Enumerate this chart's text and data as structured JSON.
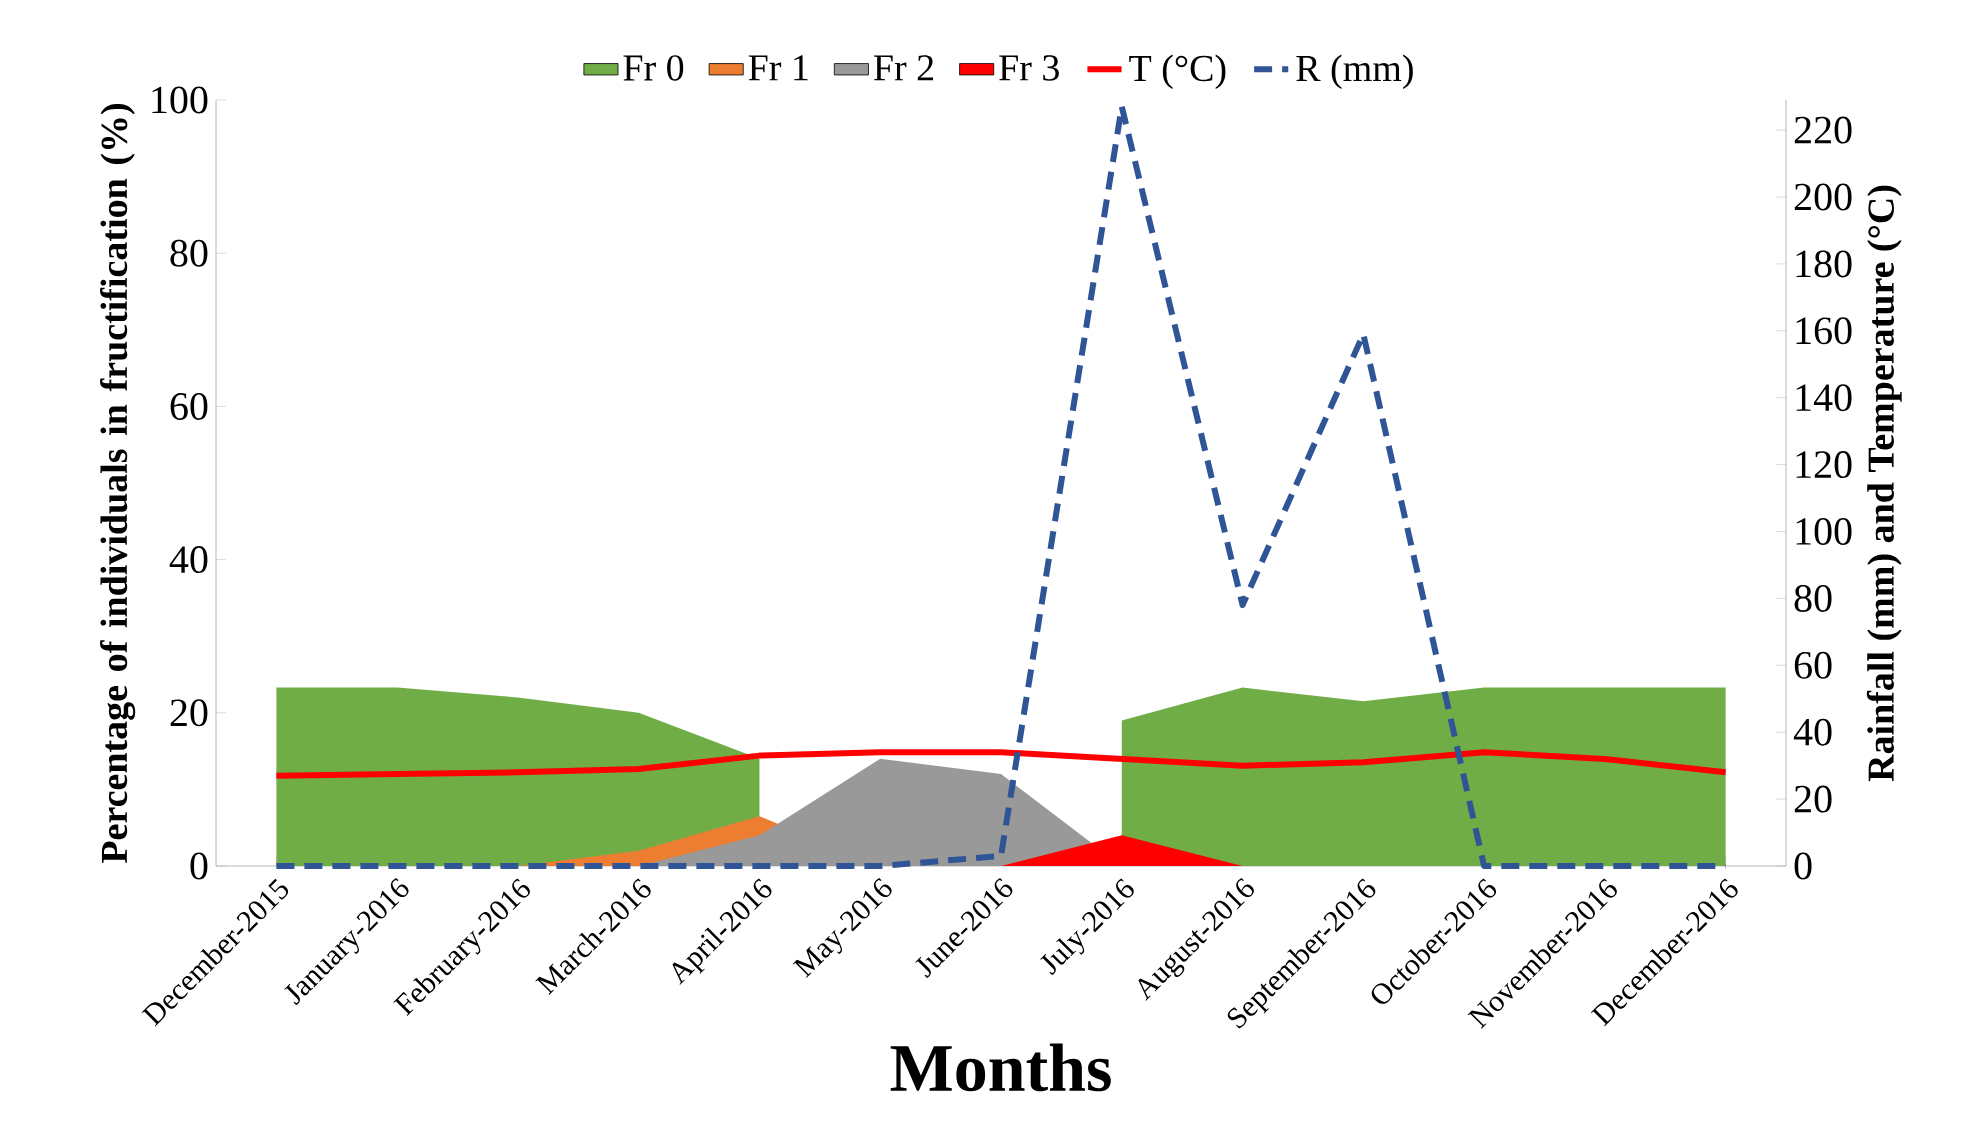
{
  "chart_data": {
    "type": "area",
    "xlabel": "Months",
    "ylabel": "Percentage of individuals in fructification (%)",
    "y2label": "Rainfall (mm) and Temperature (°C)",
    "categories": [
      "December-2015",
      "January-2016",
      "February-2016",
      "March-2016",
      "April-2016",
      "May-2016",
      "June-2016",
      "July-2016",
      "August-2016",
      "September-2016",
      "October-2016",
      "November-2016",
      "December-2016"
    ],
    "series": [
      {
        "name": "Fr 0",
        "color": "#70ad47",
        "values": [
          23.3,
          23.3,
          22,
          20,
          14,
          null,
          null,
          19,
          23.3,
          21.5,
          23.3,
          23.3,
          23.3
        ]
      },
      {
        "name": "Fr 1",
        "color": "#ed7d31",
        "values": [
          0,
          0,
          0,
          2,
          6.5,
          0,
          0,
          0,
          0,
          0,
          0,
          0,
          0
        ]
      },
      {
        "name": "Fr 2",
        "color": "#999999",
        "values": [
          0,
          0,
          0,
          0,
          4,
          14,
          12,
          0,
          0,
          0,
          0,
          0,
          0
        ]
      },
      {
        "name": "Fr 3",
        "color": "#ff0000",
        "values": [
          0,
          0,
          0,
          0,
          0,
          0,
          0,
          4,
          0,
          0,
          0,
          0,
          0
        ]
      },
      {
        "name": "T (°C)",
        "type": "line",
        "axis": "y2",
        "color": "#ff0000",
        "line_style": "solid",
        "values": [
          27,
          27.5,
          28,
          29,
          33,
          34,
          34,
          32,
          30,
          31,
          34,
          32,
          28
        ]
      },
      {
        "name": "R (mm)",
        "type": "line",
        "axis": "y2",
        "color": "#2f5597",
        "line_style": "dashed",
        "values": [
          0,
          0,
          0,
          0,
          0,
          0,
          3,
          227,
          78,
          159,
          0,
          0,
          0
        ]
      }
    ],
    "ylim": [
      0,
      100
    ],
    "yticks": [
      0,
      20,
      40,
      60,
      80,
      100
    ],
    "y2lim": [
      0,
      229
    ],
    "y2ticks": [
      0,
      20,
      40,
      60,
      80,
      100,
      120,
      140,
      160,
      180,
      200,
      220
    ],
    "grid": false,
    "legend": "top"
  }
}
